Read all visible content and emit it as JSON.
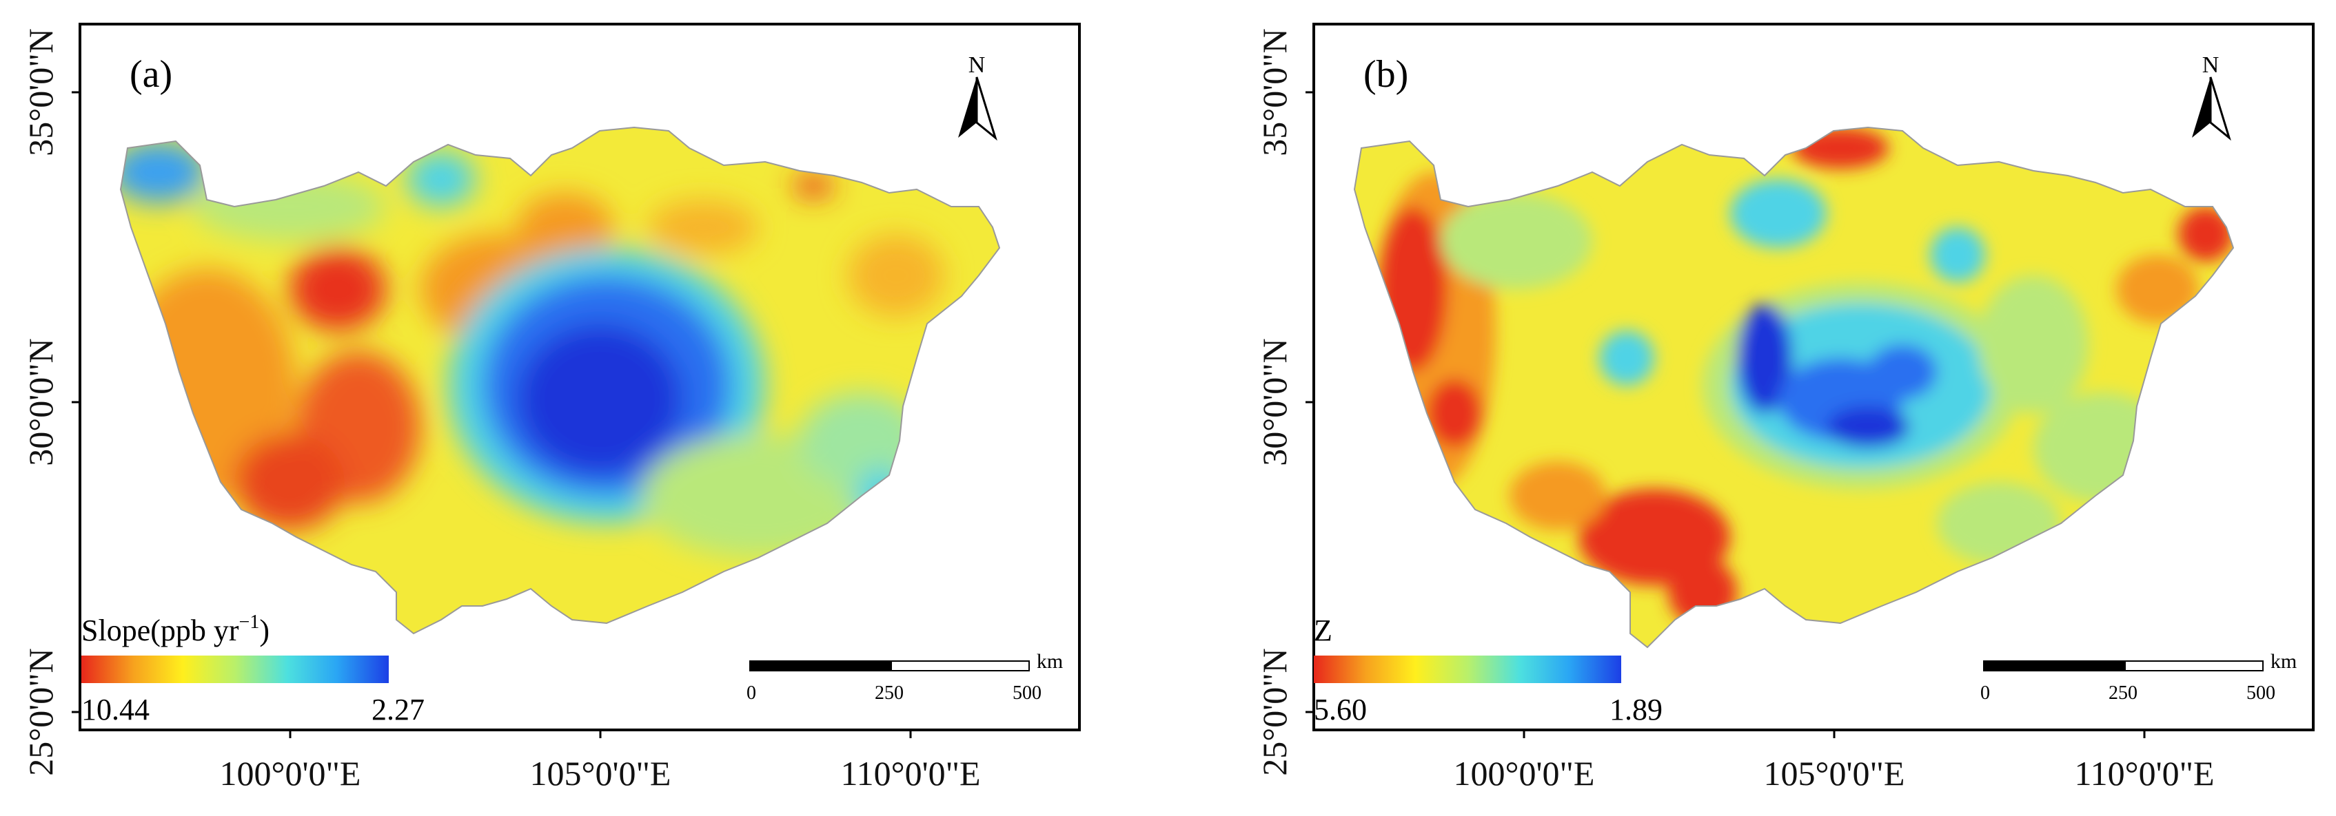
{
  "panels": [
    {
      "id": "a",
      "label": "(a)",
      "legend": {
        "title": "Slope(ppb yr",
        "title_sup": "−1",
        "title_close": ")",
        "min_label": "10.44",
        "max_label": "2.27",
        "colors": [
          "#e8271b",
          "#f7a21e",
          "#ffef1d",
          "#b9f06a",
          "#4de0df",
          "#2aa6f4",
          "#1c3fe6"
        ]
      },
      "north_label": "N",
      "scale": {
        "ticks": [
          "0",
          "250",
          "500"
        ],
        "unit": "km"
      },
      "lat_labels": [
        "35°0'0\"N",
        "30°0'0\"N",
        "25°0'0\"N"
      ],
      "lon_labels": [
        "100°0'0\"E",
        "105°0'0\"E",
        "110°0'0\"E"
      ]
    },
    {
      "id": "b",
      "label": "(b)",
      "legend": {
        "title": "Z",
        "min_label": "5.60",
        "max_label": "1.89",
        "colors": [
          "#e8271b",
          "#f7a21e",
          "#ffef1d",
          "#b9f06a",
          "#4de0df",
          "#2aa6f4",
          "#1c3fe6"
        ]
      },
      "north_label": "N",
      "scale": {
        "ticks": [
          "0",
          "250",
          "500"
        ],
        "unit": "km"
      },
      "lat_labels": [
        "35°0'0\"N",
        "30°0'0\"N",
        "25°0'0\"N"
      ],
      "lon_labels": [
        "100°0'0\"E",
        "105°0'0\"E",
        "110°0'0\"E"
      ]
    }
  ],
  "colors": {
    "frame": "#000000",
    "outside": "#ffffff",
    "base_yellow": "#f3ea39",
    "orange": "#f59a24",
    "red": "#e8331c",
    "light_green": "#b9e87a",
    "cyan": "#4fd3e6",
    "blue": "#2a6ff0",
    "deep_blue": "#1a36d9"
  }
}
